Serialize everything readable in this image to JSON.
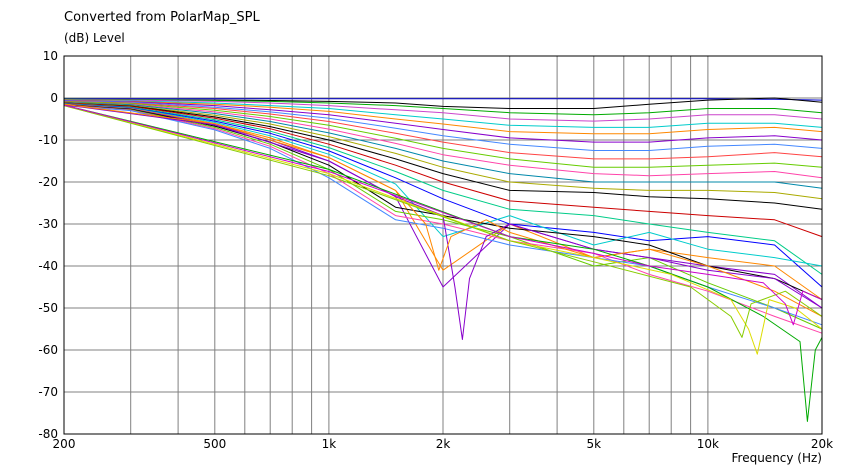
{
  "chart_data": {
    "type": "line",
    "title": "Converted from PolarMap_SPL",
    "ylabel": "(dB)  Level",
    "xlabel": "Frequency  (Hz)",
    "x_scale": "log",
    "xlim": [
      200,
      20000
    ],
    "ylim": [
      -80,
      10
    ],
    "grid": true,
    "legend": "none",
    "x_ticks": [
      {
        "value": 200,
        "label": "200"
      },
      {
        "value": 500,
        "label": "500"
      },
      {
        "value": 1000,
        "label": "1k"
      },
      {
        "value": 2000,
        "label": "2k"
      },
      {
        "value": 5000,
        "label": "5k"
      },
      {
        "value": 10000,
        "label": "10k"
      },
      {
        "value": 20000,
        "label": "20k"
      }
    ],
    "y_ticks": [
      {
        "value": 10,
        "label": "10"
      },
      {
        "value": 0,
        "label": "0"
      },
      {
        "value": -10,
        "label": "-10"
      },
      {
        "value": -20,
        "label": "-20"
      },
      {
        "value": -30,
        "label": "-30"
      },
      {
        "value": -40,
        "label": "-40"
      },
      {
        "value": -50,
        "label": "-50"
      },
      {
        "value": -60,
        "label": "-60"
      },
      {
        "value": -70,
        "label": "-70"
      },
      {
        "value": -80,
        "label": "-80"
      }
    ],
    "x": [
      200,
      300,
      500,
      700,
      1000,
      1500,
      2000,
      3000,
      5000,
      7000,
      10000,
      15000,
      20000
    ],
    "series": [
      {
        "color": "#0000cc",
        "values": [
          -0.2,
          -0.2,
          -0.2,
          -0.2,
          -0.2,
          -0.2,
          -0.2,
          -0.2,
          -0.2,
          -0.2,
          -0.2,
          -0.3,
          -0.5
        ]
      },
      {
        "color": "#000000",
        "values": [
          -0.3,
          -0.4,
          -0.5,
          -0.6,
          -0.8,
          -1.2,
          -2,
          -2.5,
          -2.5,
          -1.5,
          -0.5,
          0,
          -1
        ]
      },
      {
        "color": "#00aa00",
        "values": [
          -0.3,
          -0.4,
          -0.6,
          -0.8,
          -1.2,
          -1.8,
          -2.5,
          -3.5,
          -4,
          -3.5,
          -2.5,
          -2.5,
          -3.5
        ]
      },
      {
        "color": "#cc44cc",
        "values": [
          -0.4,
          -0.5,
          -0.8,
          -1.2,
          -1.8,
          -2.8,
          -3.5,
          -5,
          -5.5,
          -5,
          -4,
          -4,
          -5
        ]
      },
      {
        "color": "#00cccc",
        "values": [
          -0.5,
          -0.7,
          -1.2,
          -1.8,
          -2.5,
          -4,
          -5,
          -6.5,
          -7,
          -7,
          -6,
          -6,
          -7
        ]
      },
      {
        "color": "#ff8800",
        "values": [
          -0.5,
          -0.8,
          -1.5,
          -2.2,
          -3.2,
          -5,
          -6.2,
          -8,
          -8.5,
          -8.5,
          -7.5,
          -7,
          -8
        ]
      },
      {
        "color": "#8800cc",
        "values": [
          -0.6,
          -0.9,
          -1.8,
          -2.8,
          -4,
          -6,
          -7.5,
          -9.5,
          -10.5,
          -10.5,
          -9.5,
          -9,
          -10
        ]
      },
      {
        "color": "#4488ff",
        "values": [
          -0.7,
          -1,
          -2.2,
          -3.3,
          -4.8,
          -7.2,
          -9,
          -11,
          -12.5,
          -12.5,
          -11.5,
          -11,
          -12
        ]
      },
      {
        "color": "#ff4444",
        "values": [
          -0.8,
          -1.2,
          -2.5,
          -3.8,
          -5.6,
          -8.4,
          -10.5,
          -13,
          -14.5,
          -14.5,
          -14,
          -13,
          -14
        ]
      },
      {
        "color": "#66cc00",
        "values": [
          -0.9,
          -1.3,
          -2.9,
          -4.4,
          -6.5,
          -9.6,
          -12,
          -14.5,
          -16.5,
          -16.5,
          -16,
          -15.5,
          -16.5
        ]
      },
      {
        "color": "#ff44aa",
        "values": [
          -1,
          -1.5,
          -3.3,
          -5,
          -7.4,
          -10.8,
          -13.5,
          -16,
          -18,
          -18.5,
          -18,
          -17.5,
          -19
        ]
      },
      {
        "color": "#0088aa",
        "values": [
          -1,
          -1.6,
          -3.7,
          -5.6,
          -8.3,
          -12,
          -15,
          -18,
          -20,
          -20,
          -20,
          -20,
          -21.5
        ]
      },
      {
        "color": "#aaaa00",
        "values": [
          -1.1,
          -1.8,
          -4.1,
          -6.2,
          -9.2,
          -13.2,
          -16.5,
          -20,
          -21.5,
          -22,
          -22,
          -22.5,
          -24
        ]
      },
      {
        "color": "#000000",
        "values": [
          -1.2,
          -1.9,
          -4.5,
          -6.8,
          -10,
          -14.5,
          -18,
          -22,
          -22.5,
          -23.5,
          -24,
          -25,
          -26.5
        ]
      },
      {
        "color": "#cc0000",
        "values": [
          -1.2,
          -2,
          -4.8,
          -7.3,
          -11,
          -16,
          -20,
          -24.5,
          -26,
          -27,
          -28,
          -29,
          -33
        ]
      },
      {
        "color": "#00cc88",
        "values": [
          -1.3,
          -2.2,
          -5.2,
          -7.9,
          -11.8,
          -17.5,
          -22,
          -26.5,
          -28,
          -30,
          -32,
          -34,
          -42
        ]
      },
      {
        "color": "#0000ff",
        "values": [
          -1.4,
          -2.3,
          -5.5,
          -8.4,
          -12.6,
          -19,
          -24,
          -30,
          -32,
          -34,
          -33,
          -35,
          -45
        ]
      },
      {
        "color": "#00cccc",
        "values": [
          -1.5,
          -2.4,
          -5.8,
          -9,
          -13.4,
          -20.5,
          -33,
          -28,
          -35,
          -32,
          -36,
          -38,
          -40
        ]
      },
      {
        "color": "#ff8800",
        "values": [
          -1.5,
          -2.5,
          -6.1,
          -9.5,
          -14.2,
          -22,
          -41,
          -30,
          -38,
          -36,
          -38,
          -40,
          -48
        ]
      },
      {
        "color": "#8800cc",
        "values": [
          -1.6,
          -2.6,
          -6.4,
          -10,
          -15,
          -23.5,
          -45,
          -30,
          -36,
          -38,
          -40,
          -42,
          -50
        ]
      },
      {
        "color": "#000000",
        "values": [
          -1.6,
          -2.7,
          -6.7,
          -10.5,
          -16,
          -26,
          -28,
          -31,
          -33,
          -35,
          -40,
          -43,
          -48
        ]
      },
      {
        "color": "#66cc00",
        "values": [
          -1.7,
          -2.8,
          -7,
          -11,
          -17,
          -27,
          -29,
          -33,
          -40,
          -38,
          -44,
          -50,
          -55
        ]
      },
      {
        "color": "#ff44aa",
        "values": [
          -1.7,
          -2.9,
          -7.3,
          -11.5,
          -18,
          -28,
          -30,
          -34,
          -37,
          -42,
          -46,
          -52,
          -56
        ]
      },
      {
        "color": "#4488ff",
        "values": [
          -1.8,
          -3,
          -7.6,
          -12,
          -19,
          -29,
          -31,
          -35,
          -38,
          -40,
          -45,
          -50,
          -54
        ]
      }
    ]
  },
  "special_series": [
    {
      "name": "dip-purple",
      "color": "#8800cc",
      "points": [
        [
          200,
          -1.6
        ],
        [
          500,
          -6.4
        ],
        [
          1000,
          -15
        ],
        [
          1500,
          -23.5
        ],
        [
          2000,
          -28
        ],
        [
          2150,
          -45
        ],
        [
          2250,
          -57.5
        ],
        [
          2350,
          -43
        ],
        [
          2600,
          -33
        ],
        [
          3000,
          -30
        ],
        [
          5000,
          -36
        ],
        [
          7000,
          -38
        ],
        [
          10000,
          -41
        ],
        [
          15000,
          -43
        ],
        [
          20000,
          -50
        ]
      ]
    },
    {
      "name": "dip-orange",
      "color": "#ff8800",
      "points": [
        [
          200,
          -1.5
        ],
        [
          500,
          -6.1
        ],
        [
          1000,
          -14.2
        ],
        [
          1500,
          -22
        ],
        [
          1800,
          -30
        ],
        [
          1950,
          -41
        ],
        [
          2100,
          -33
        ],
        [
          2600,
          -29
        ],
        [
          3000,
          -32
        ],
        [
          5000,
          -38
        ],
        [
          7000,
          -36
        ],
        [
          10000,
          -40
        ],
        [
          15000,
          -46
        ],
        [
          20000,
          -52
        ]
      ]
    },
    {
      "name": "dip-deep-green",
      "color": "#00aa00",
      "points": [
        [
          200,
          -1.7
        ],
        [
          1000,
          -17
        ],
        [
          3000,
          -33
        ],
        [
          5000,
          -36
        ],
        [
          7000,
          -40
        ],
        [
          10000,
          -45
        ],
        [
          14000,
          -52
        ],
        [
          17500,
          -58
        ],
        [
          18300,
          -77
        ],
        [
          19200,
          -60
        ],
        [
          20000,
          -57
        ]
      ]
    },
    {
      "name": "dip-yellow",
      "color": "#dddd00",
      "points": [
        [
          200,
          -1.8
        ],
        [
          1000,
          -18
        ],
        [
          3000,
          -34
        ],
        [
          5000,
          -38
        ],
        [
          8000,
          -42
        ],
        [
          11500,
          -48
        ],
        [
          12800,
          -55
        ],
        [
          13500,
          -61
        ],
        [
          14500,
          -48
        ],
        [
          17000,
          -50
        ],
        [
          20000,
          -55
        ]
      ]
    },
    {
      "name": "dip-lime",
      "color": "#88cc00",
      "points": [
        [
          200,
          -1.8
        ],
        [
          1000,
          -18.5
        ],
        [
          3000,
          -34
        ],
        [
          5000,
          -39
        ],
        [
          9000,
          -45
        ],
        [
          11500,
          -52
        ],
        [
          12300,
          -57
        ],
        [
          13000,
          -49
        ],
        [
          16000,
          -46
        ],
        [
          20000,
          -52
        ]
      ]
    },
    {
      "name": "dip-magenta",
      "color": "#cc00cc",
      "points": [
        [
          200,
          -1.7
        ],
        [
          1000,
          -17.5
        ],
        [
          3000,
          -33
        ],
        [
          5000,
          -37
        ],
        [
          7000,
          -40
        ],
        [
          10000,
          -42
        ],
        [
          14000,
          -44
        ],
        [
          16000,
          -49
        ],
        [
          16800,
          -54
        ],
        [
          17800,
          -46
        ],
        [
          20000,
          -48
        ]
      ]
    }
  ]
}
